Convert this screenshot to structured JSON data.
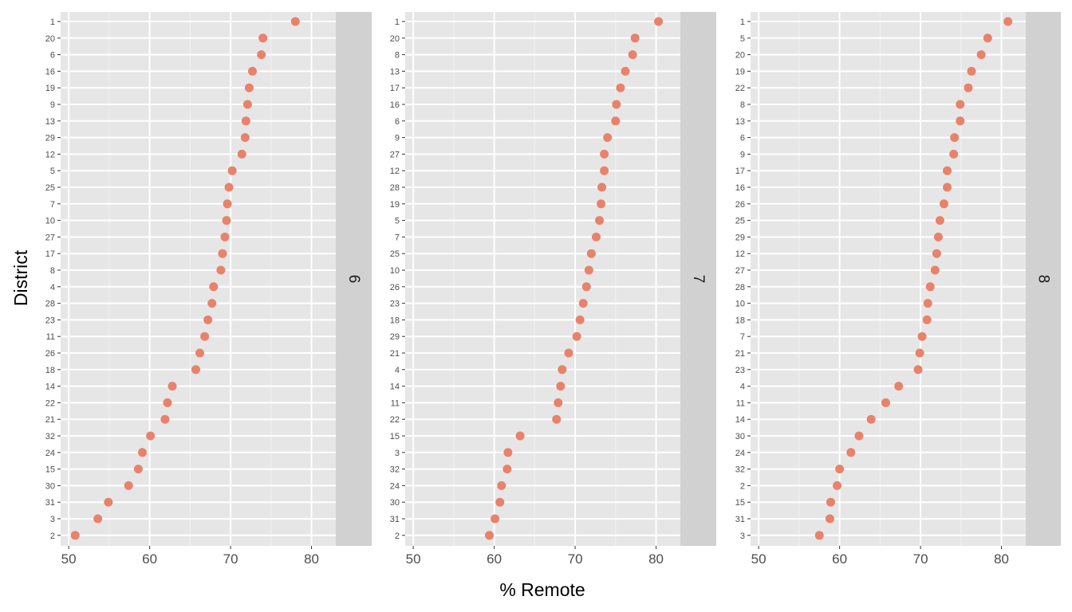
{
  "chart_data": {
    "type": "scatter",
    "xlabel": "% Remote",
    "ylabel": "District",
    "xlim": [
      49,
      83
    ],
    "x_ticks": [
      50,
      60,
      70,
      80
    ],
    "grid": true,
    "point_color": "#E8826A",
    "panel_bg": "#E6E6E6",
    "strip_bg": "#D1D1D1",
    "panels": [
      {
        "strip": "6",
        "districts": [
          "1",
          "20",
          "6",
          "16",
          "19",
          "9",
          "13",
          "29",
          "12",
          "5",
          "25",
          "7",
          "10",
          "27",
          "17",
          "8",
          "4",
          "28",
          "23",
          "11",
          "26",
          "18",
          "14",
          "22",
          "21",
          "32",
          "24",
          "15",
          "30",
          "31",
          "3",
          "2"
        ],
        "values": [
          78.0,
          74.0,
          73.8,
          72.7,
          72.3,
          72.1,
          71.9,
          71.8,
          71.4,
          70.2,
          69.8,
          69.6,
          69.5,
          69.3,
          69.0,
          68.8,
          67.9,
          67.7,
          67.2,
          66.8,
          66.2,
          65.7,
          62.8,
          62.2,
          61.9,
          60.1,
          59.1,
          58.6,
          57.4,
          54.9,
          53.6,
          50.8
        ]
      },
      {
        "strip": "7",
        "districts": [
          "1",
          "20",
          "8",
          "13",
          "17",
          "16",
          "6",
          "9",
          "27",
          "12",
          "28",
          "19",
          "5",
          "7",
          "25",
          "10",
          "26",
          "23",
          "18",
          "29",
          "21",
          "4",
          "14",
          "11",
          "22",
          "15",
          "3",
          "32",
          "24",
          "30",
          "31",
          "2"
        ],
        "values": [
          80.3,
          77.4,
          77.1,
          76.2,
          75.6,
          75.1,
          75.0,
          74.0,
          73.6,
          73.6,
          73.3,
          73.2,
          73.0,
          72.6,
          72.0,
          71.7,
          71.4,
          71.0,
          70.6,
          70.2,
          69.2,
          68.4,
          68.2,
          67.9,
          67.7,
          63.2,
          61.7,
          61.6,
          60.9,
          60.7,
          60.1,
          59.4
        ]
      },
      {
        "strip": "8",
        "districts": [
          "1",
          "5",
          "20",
          "19",
          "22",
          "8",
          "13",
          "6",
          "9",
          "17",
          "16",
          "26",
          "25",
          "29",
          "12",
          "27",
          "28",
          "10",
          "18",
          "7",
          "21",
          "23",
          "4",
          "11",
          "14",
          "30",
          "24",
          "32",
          "2",
          "15",
          "31",
          "3"
        ],
        "values": [
          80.8,
          78.3,
          77.5,
          76.3,
          75.9,
          74.9,
          74.9,
          74.2,
          74.1,
          73.3,
          73.3,
          72.9,
          72.4,
          72.2,
          72.0,
          71.8,
          71.2,
          70.9,
          70.8,
          70.2,
          69.9,
          69.7,
          67.3,
          65.7,
          63.9,
          62.4,
          61.4,
          60.0,
          59.7,
          58.9,
          58.8,
          57.5
        ]
      }
    ]
  }
}
